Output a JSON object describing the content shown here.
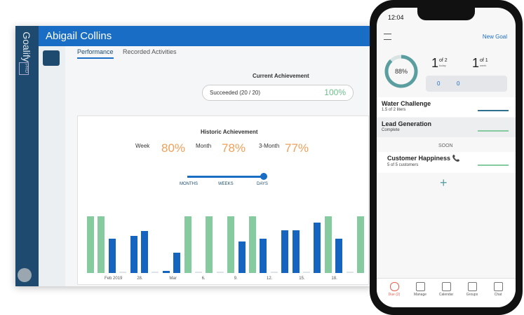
{
  "desktop": {
    "brand": "Goalify",
    "badge": "PRO",
    "user": "Abigail Collins",
    "tabs": [
      "Performance",
      "Recorded Activities"
    ],
    "current": {
      "title": "Current Achievement",
      "text": "Succeeded (20 / 20)",
      "percent": "100%"
    },
    "historic": {
      "title": "Historic Achievement",
      "stats": [
        {
          "label": "Week",
          "value": "80%"
        },
        {
          "label": "Month",
          "value": "78%"
        },
        {
          "label": "3-Month",
          "value": "77%"
        }
      ],
      "slider": [
        "MONTHS",
        "WEEKS",
        "DAYS"
      ],
      "bars": [
        {
          "value": 100,
          "color": "#86cba0"
        },
        {
          "value": 100,
          "color": "#86cba0"
        },
        {
          "value": 60,
          "color": "#1565c0"
        },
        {
          "value": 2,
          "color": "#dde3e8"
        },
        {
          "value": 65,
          "color": "#1565c0"
        },
        {
          "value": 74,
          "color": "#1565c0"
        },
        {
          "value": 2,
          "color": "#dde3e8"
        },
        {
          "value": 4,
          "color": "#1565c0"
        },
        {
          "value": 36,
          "color": "#1565c0"
        },
        {
          "value": 100,
          "color": "#86cba0"
        },
        {
          "value": 2,
          "color": "#dde3e8"
        },
        {
          "value": 100,
          "color": "#86cba0"
        },
        {
          "value": 2,
          "color": "#dde3e8"
        },
        {
          "value": 100,
          "color": "#86cba0"
        },
        {
          "value": 56,
          "color": "#1565c0"
        },
        {
          "value": 100,
          "color": "#86cba0"
        },
        {
          "value": 60,
          "color": "#1565c0"
        },
        {
          "value": 2,
          "color": "#dde3e8"
        },
        {
          "value": 75,
          "color": "#1565c0"
        },
        {
          "value": 75,
          "color": "#1565c0"
        },
        {
          "value": 2,
          "color": "#dde3e8"
        },
        {
          "value": 89,
          "color": "#1565c0"
        },
        {
          "value": 100,
          "color": "#86cba0"
        },
        {
          "value": 60,
          "color": "#1565c0"
        },
        {
          "value": 2,
          "color": "#dde3e8"
        },
        {
          "value": 100,
          "color": "#86cba0"
        }
      ],
      "xlabels": [
        "Feb 2019",
        "28.",
        "Mar",
        "6.",
        "9.",
        "12.",
        "15.",
        "18."
      ]
    }
  },
  "phone": {
    "time": "12:04",
    "action": "New Goal",
    "ring": {
      "value": 88,
      "label": "88%"
    },
    "counts": [
      {
        "n": "1",
        "of": "of 2",
        "unit": "today"
      },
      {
        "n": "1",
        "of": "of 1",
        "unit": "week"
      }
    ],
    "tags": [
      "0",
      "0"
    ],
    "goals": [
      {
        "title": "Water Challenge",
        "sub": "1.5 of 2 liters"
      },
      {
        "title": "Lead Generation",
        "sub": "Complete"
      }
    ],
    "soon": "SOON",
    "soon_goal": {
      "title": "Customer Happiness 📞",
      "sub": "5 of 5 customers"
    },
    "add": "+",
    "nav": [
      "Due (2)",
      "Manage",
      "Calendar",
      "Groups",
      "Chat"
    ]
  }
}
